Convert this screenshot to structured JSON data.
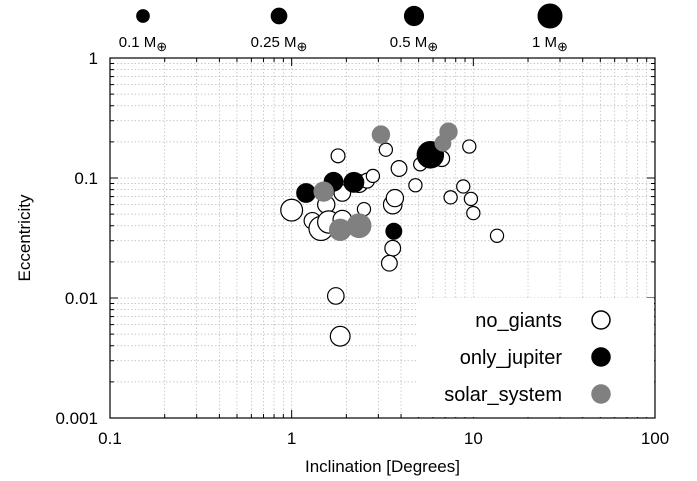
{
  "chart_data": {
    "type": "scatter",
    "title": "",
    "xlabel": "Inclination [Degrees]",
    "ylabel": "Eccentricity",
    "xscale": "log",
    "yscale": "log",
    "xlim": [
      0.1,
      100
    ],
    "ylim": [
      0.001,
      1
    ],
    "grid": true,
    "x_tick_labels": [
      "0.1",
      "1",
      "10",
      "100"
    ],
    "y_tick_labels": [
      "0.001",
      "0.01",
      "0.1",
      "1"
    ],
    "legend": {
      "placement": "bottom-right"
    },
    "mass_legend": [
      {
        "label": "0.1 M",
        "symbol": "⊕",
        "mass": 0.1
      },
      {
        "label": "0.25 M",
        "symbol": "⊕",
        "mass": 0.25
      },
      {
        "label": "0.5 M",
        "symbol": "⊕",
        "mass": 0.5
      },
      {
        "label": "1 M",
        "symbol": "⊕",
        "mass": 1.0
      }
    ],
    "series": [
      {
        "name": "no_giants",
        "fill": "#ffffff",
        "stroke": "#000000",
        "points": [
          {
            "x": 1.0,
            "y": 0.054,
            "mass": 0.75
          },
          {
            "x": 1.3,
            "y": 0.044,
            "mass": 0.3
          },
          {
            "x": 1.45,
            "y": 0.038,
            "mass": 1.0
          },
          {
            "x": 1.55,
            "y": 0.06,
            "mass": 0.35
          },
          {
            "x": 1.6,
            "y": 0.043,
            "mass": 0.8
          },
          {
            "x": 1.8,
            "y": 0.153,
            "mass": 0.15
          },
          {
            "x": 1.9,
            "y": 0.075,
            "mass": 0.3
          },
          {
            "x": 1.9,
            "y": 0.045,
            "mass": 0.45
          },
          {
            "x": 2.5,
            "y": 0.055,
            "mass": 0.12
          },
          {
            "x": 2.35,
            "y": 0.09,
            "mass": 0.4
          },
          {
            "x": 2.6,
            "y": 0.095,
            "mass": 0.2
          },
          {
            "x": 2.8,
            "y": 0.104,
            "mass": 0.12
          },
          {
            "x": 1.75,
            "y": 0.0104,
            "mass": 0.3
          },
          {
            "x": 1.85,
            "y": 0.0048,
            "mass": 0.55
          },
          {
            "x": 3.3,
            "y": 0.172,
            "mass": 0.12
          },
          {
            "x": 3.6,
            "y": 0.06,
            "mass": 0.45
          },
          {
            "x": 3.7,
            "y": 0.068,
            "mass": 0.35
          },
          {
            "x": 3.6,
            "y": 0.026,
            "mass": 0.25
          },
          {
            "x": 3.45,
            "y": 0.0195,
            "mass": 0.25
          },
          {
            "x": 3.9,
            "y": 0.12,
            "mass": 0.25
          },
          {
            "x": 4.8,
            "y": 0.087,
            "mass": 0.12
          },
          {
            "x": 5.1,
            "y": 0.13,
            "mass": 0.12
          },
          {
            "x": 6.7,
            "y": 0.145,
            "mass": 0.25
          },
          {
            "x": 7.5,
            "y": 0.069,
            "mass": 0.12
          },
          {
            "x": 8.8,
            "y": 0.085,
            "mass": 0.12
          },
          {
            "x": 9.5,
            "y": 0.183,
            "mass": 0.12
          },
          {
            "x": 9.7,
            "y": 0.067,
            "mass": 0.12
          },
          {
            "x": 10.0,
            "y": 0.051,
            "mass": 0.12
          },
          {
            "x": 13.5,
            "y": 0.033,
            "mass": 0.12
          }
        ]
      },
      {
        "name": "only_jupiter",
        "fill": "#000000",
        "stroke": "#000000",
        "points": [
          {
            "x": 1.2,
            "y": 0.075,
            "mass": 0.45
          },
          {
            "x": 1.7,
            "y": 0.093,
            "mass": 0.45
          },
          {
            "x": 2.2,
            "y": 0.092,
            "mass": 0.55
          },
          {
            "x": 3.65,
            "y": 0.036,
            "mass": 0.25
          },
          {
            "x": 5.8,
            "y": 0.156,
            "mass": 1.3
          }
        ]
      },
      {
        "name": "solar_system",
        "fill": "#808080",
        "stroke": "#808080",
        "points": [
          {
            "x": 1.5,
            "y": 0.077,
            "mass": 0.5
          },
          {
            "x": 1.85,
            "y": 0.037,
            "mass": 0.7
          },
          {
            "x": 2.35,
            "y": 0.04,
            "mass": 0.95
          },
          {
            "x": 3.1,
            "y": 0.23,
            "mass": 0.35
          },
          {
            "x": 6.8,
            "y": 0.195,
            "mass": 0.25
          },
          {
            "x": 7.3,
            "y": 0.243,
            "mass": 0.35
          }
        ]
      }
    ]
  }
}
